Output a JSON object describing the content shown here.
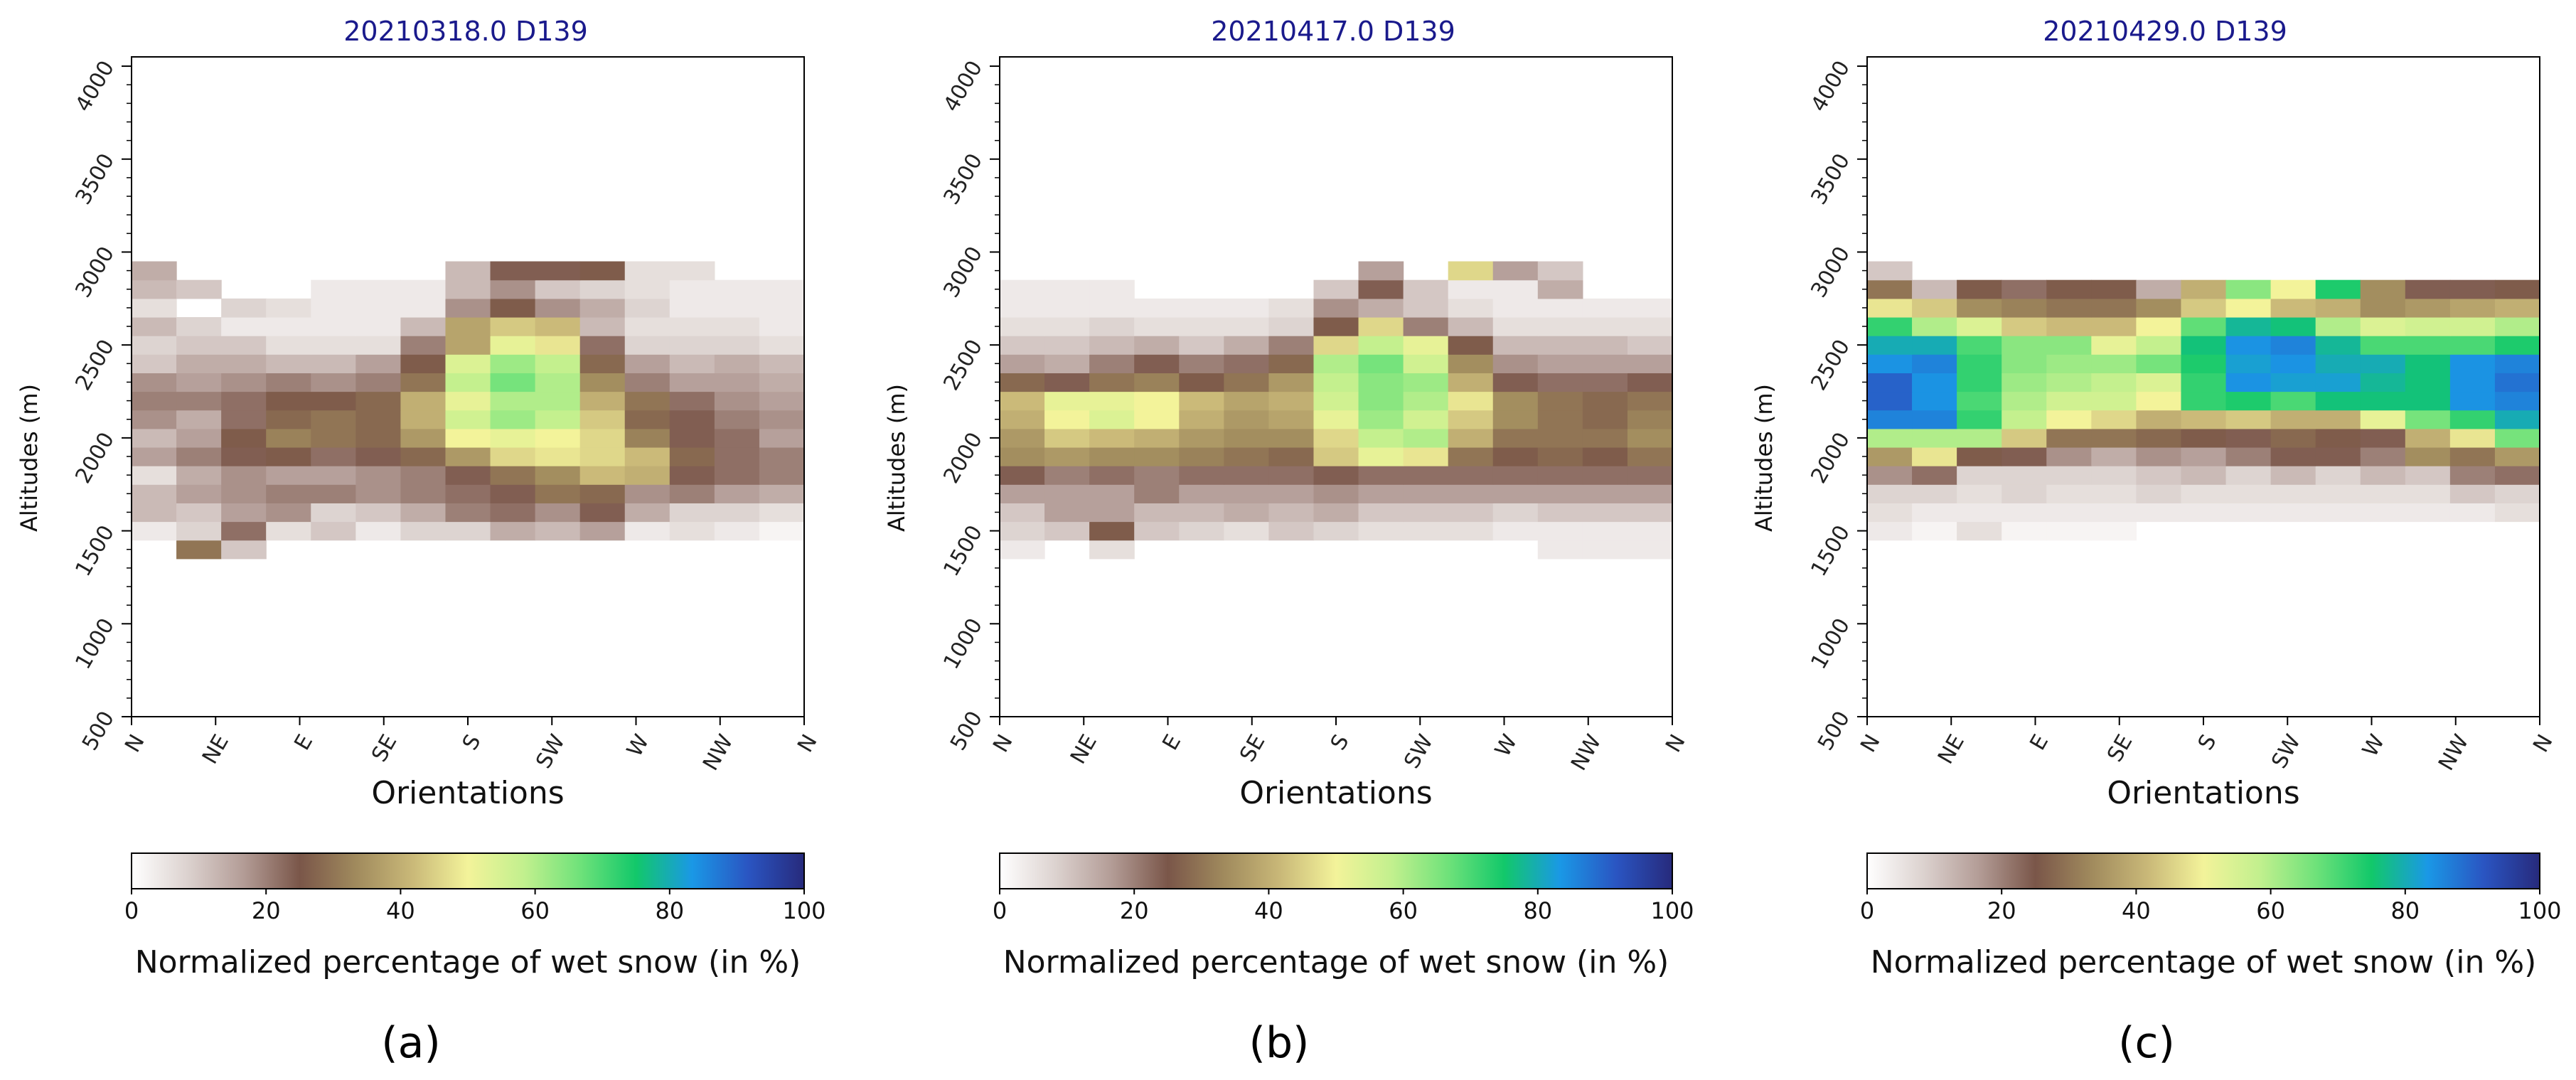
{
  "figure": {
    "colorbar_label": "Normalized percentage of wet snow (in %)",
    "xlabel": "Orientations",
    "ylabel": "Altitudes (m)",
    "colormap": [
      "#ffffff",
      "#dcd2cf",
      "#b39c96",
      "#7a5649",
      "#a08a5d",
      "#c9b878",
      "#f3f39a",
      "#c2f08e",
      "#6fe27a",
      "#12c86a",
      "#1a98e6",
      "#2a55c2",
      "#272a7c"
    ]
  },
  "chart_data": [
    {
      "type": "heatmap",
      "title": "20210318.0 D139",
      "caption": "(a)",
      "x_tick_labels": [
        "N",
        "NE",
        "E",
        "SE",
        "S",
        "SW",
        "W",
        "NW",
        "N"
      ],
      "y_tick_labels": [
        "500",
        "1000",
        "1500",
        "2000",
        "2500",
        "3000",
        "3500",
        "4000"
      ],
      "ylim": [
        500,
        4050
      ],
      "n_columns": 15,
      "bin_start": 1350,
      "bin_size": 100,
      "grid": [
        [
          0,
          30,
          10,
          0,
          0,
          0,
          0,
          0,
          0,
          0,
          0,
          0,
          0,
          0,
          0
        ],
        [
          4,
          8,
          22,
          6,
          10,
          4,
          8,
          8,
          14,
          12,
          16,
          4,
          6,
          4,
          2
        ],
        [
          12,
          10,
          16,
          18,
          8,
          10,
          14,
          20,
          22,
          18,
          24,
          14,
          8,
          8,
          6
        ],
        [
          12,
          16,
          18,
          20,
          20,
          18,
          20,
          22,
          24,
          30,
          28,
          18,
          20,
          16,
          14
        ],
        [
          6,
          14,
          18,
          16,
          16,
          18,
          20,
          24,
          30,
          34,
          42,
          40,
          24,
          22,
          20
        ],
        [
          16,
          20,
          24,
          26,
          22,
          24,
          28,
          36,
          46,
          48,
          46,
          42,
          28,
          22,
          20
        ],
        [
          12,
          16,
          26,
          32,
          30,
          28,
          36,
          50,
          52,
          50,
          46,
          32,
          24,
          22,
          16
        ],
        [
          18,
          14,
          22,
          28,
          30,
          28,
          40,
          56,
          62,
          58,
          44,
          28,
          24,
          20,
          18
        ],
        [
          20,
          20,
          22,
          26,
          26,
          28,
          40,
          52,
          60,
          60,
          40,
          30,
          22,
          18,
          16
        ],
        [
          18,
          16,
          18,
          20,
          18,
          20,
          30,
          58,
          66,
          60,
          34,
          20,
          16,
          16,
          14
        ],
        [
          10,
          14,
          14,
          12,
          12,
          16,
          26,
          54,
          62,
          58,
          28,
          16,
          12,
          14,
          12
        ],
        [
          8,
          10,
          10,
          6,
          6,
          6,
          20,
          38,
          52,
          48,
          22,
          8,
          8,
          8,
          6
        ],
        [
          12,
          8,
          4,
          4,
          4,
          4,
          12,
          38,
          44,
          42,
          12,
          6,
          6,
          6,
          4
        ],
        [
          6,
          0,
          8,
          6,
          4,
          4,
          4,
          18,
          26,
          18,
          14,
          8,
          4,
          4,
          4
        ],
        [
          12,
          10,
          0,
          0,
          4,
          4,
          4,
          12,
          18,
          10,
          8,
          6,
          4,
          4,
          4
        ],
        [
          14,
          0,
          0,
          0,
          0,
          0,
          0,
          12,
          24,
          24,
          26,
          6,
          6,
          0,
          0
        ]
      ]
    },
    {
      "type": "heatmap",
      "title": "20210417.0 D139",
      "caption": "(b)",
      "x_tick_labels": [
        "N",
        "NE",
        "E",
        "SE",
        "S",
        "SW",
        "W",
        "NW",
        "N"
      ],
      "y_tick_labels": [
        "500",
        "1000",
        "1500",
        "2000",
        "2500",
        "3000",
        "3500",
        "4000"
      ],
      "ylim": [
        500,
        4050
      ],
      "n_columns": 15,
      "bin_start": 1350,
      "bin_size": 100,
      "grid": [
        [
          4,
          0,
          6,
          0,
          0,
          0,
          0,
          0,
          0,
          0,
          0,
          0,
          4,
          4,
          4
        ],
        [
          8,
          10,
          26,
          10,
          8,
          6,
          10,
          8,
          6,
          6,
          6,
          4,
          4,
          4,
          4
        ],
        [
          10,
          16,
          16,
          12,
          12,
          14,
          12,
          14,
          10,
          10,
          10,
          8,
          10,
          10,
          10
        ],
        [
          16,
          16,
          16,
          20,
          16,
          16,
          16,
          18,
          16,
          16,
          16,
          16,
          16,
          16,
          16
        ],
        [
          24,
          20,
          22,
          20,
          22,
          22,
          22,
          24,
          22,
          22,
          22,
          22,
          22,
          22,
          22
        ],
        [
          34,
          36,
          34,
          34,
          32,
          30,
          28,
          44,
          52,
          48,
          30,
          26,
          28,
          26,
          30
        ],
        [
          36,
          44,
          42,
          40,
          36,
          34,
          34,
          46,
          58,
          60,
          40,
          30,
          30,
          30,
          34
        ],
        [
          40,
          50,
          54,
          50,
          40,
          36,
          38,
          52,
          62,
          56,
          44,
          34,
          30,
          28,
          32
        ],
        [
          42,
          52,
          52,
          50,
          42,
          38,
          40,
          56,
          64,
          60,
          48,
          34,
          30,
          28,
          30
        ],
        [
          28,
          24,
          30,
          32,
          26,
          30,
          36,
          58,
          64,
          62,
          40,
          24,
          22,
          22,
          24
        ],
        [
          16,
          14,
          20,
          24,
          20,
          22,
          28,
          60,
          66,
          56,
          34,
          18,
          16,
          16,
          16
        ],
        [
          10,
          10,
          12,
          14,
          10,
          14,
          20,
          46,
          58,
          52,
          26,
          12,
          12,
          12,
          10
        ],
        [
          6,
          6,
          8,
          6,
          6,
          6,
          8,
          26,
          46,
          20,
          12,
          6,
          6,
          6,
          6
        ],
        [
          4,
          4,
          4,
          4,
          4,
          4,
          6,
          18,
          14,
          10,
          6,
          4,
          4,
          4,
          4
        ],
        [
          4,
          4,
          4,
          0,
          0,
          0,
          0,
          10,
          24,
          10,
          4,
          4,
          14,
          0,
          0
        ],
        [
          0,
          0,
          0,
          0,
          0,
          0,
          0,
          0,
          16,
          0,
          46,
          16,
          10,
          0,
          0
        ]
      ]
    },
    {
      "type": "heatmap",
      "title": "20210429.0 D139",
      "caption": "(c)",
      "x_tick_labels": [
        "N",
        "NE",
        "E",
        "SE",
        "S",
        "SW",
        "W",
        "NW",
        "N"
      ],
      "y_tick_labels": [
        "500",
        "1000",
        "1500",
        "2000",
        "2500",
        "3000",
        "3500",
        "4000"
      ],
      "ylim": [
        500,
        4050
      ],
      "n_columns": 15,
      "bin_start": 1350,
      "bin_size": 100,
      "grid": [
        [
          0,
          0,
          0,
          0,
          0,
          0,
          0,
          0,
          0,
          0,
          0,
          0,
          0,
          0,
          0
        ],
        [
          4,
          2,
          6,
          2,
          2,
          2,
          0,
          0,
          0,
          0,
          0,
          0,
          0,
          0,
          0
        ],
        [
          6,
          4,
          4,
          4,
          4,
          4,
          4,
          4,
          4,
          4,
          4,
          4,
          4,
          4,
          6
        ],
        [
          8,
          8,
          6,
          8,
          6,
          6,
          8,
          6,
          6,
          6,
          6,
          6,
          6,
          10,
          8
        ],
        [
          18,
          22,
          8,
          8,
          8,
          8,
          10,
          12,
          8,
          12,
          8,
          12,
          10,
          20,
          22
        ],
        [
          36,
          48,
          26,
          24,
          18,
          14,
          18,
          16,
          20,
          24,
          24,
          20,
          34,
          30,
          36
        ],
        [
          60,
          60,
          60,
          44,
          30,
          30,
          28,
          26,
          24,
          28,
          26,
          24,
          40,
          48,
          66
        ],
        [
          86,
          86,
          72,
          58,
          50,
          46,
          40,
          42,
          44,
          40,
          40,
          52,
          66,
          72,
          80
        ],
        [
          90,
          84,
          70,
          60,
          56,
          56,
          50,
          72,
          74,
          70,
          76,
          76,
          76,
          84,
          86
        ],
        [
          90,
          84,
          72,
          62,
          60,
          58,
          54,
          72,
          84,
          82,
          82,
          78,
          76,
          84,
          88
        ],
        [
          84,
          86,
          72,
          64,
          62,
          62,
          66,
          74,
          82,
          84,
          80,
          80,
          76,
          84,
          86
        ],
        [
          80,
          80,
          70,
          64,
          64,
          52,
          58,
          76,
          84,
          86,
          78,
          70,
          70,
          70,
          74
        ],
        [
          72,
          60,
          54,
          44,
          42,
          42,
          50,
          68,
          78,
          76,
          60,
          54,
          56,
          56,
          60
        ],
        [
          48,
          44,
          34,
          32,
          30,
          30,
          34,
          44,
          50,
          42,
          40,
          34,
          36,
          38,
          40
        ],
        [
          30,
          12,
          26,
          22,
          26,
          26,
          14,
          40,
          64,
          50,
          74,
          34,
          24,
          24,
          26
        ],
        [
          10,
          0,
          0,
          0,
          0,
          0,
          0,
          0,
          0,
          0,
          0,
          0,
          0,
          0,
          0
        ]
      ]
    }
  ]
}
